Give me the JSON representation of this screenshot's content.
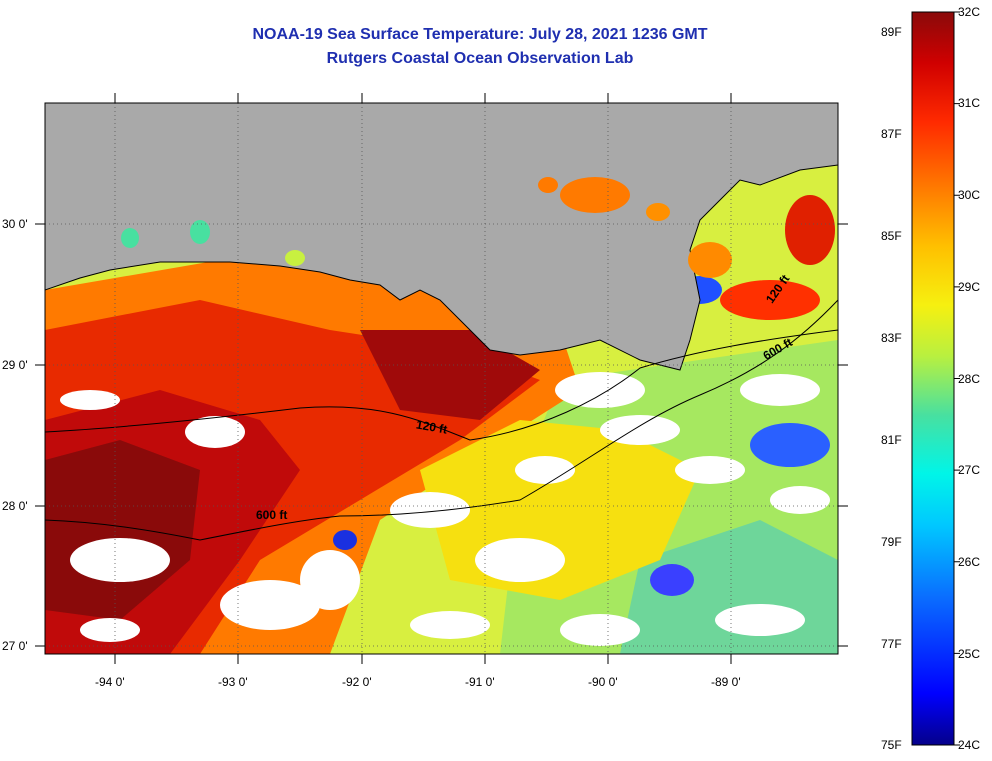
{
  "title": {
    "line1": "NOAA-19 Sea Surface Temperature:  July 28, 2021 1236 GMT",
    "line2": "Rutgers Coastal Ocean Observation Lab"
  },
  "map": {
    "lat_labels": [
      "30 0'",
      "29 0'",
      "28 0'",
      "27 0'"
    ],
    "lon_labels": [
      "-94 0'",
      "-93 0'",
      "-92 0'",
      "-91 0'",
      "-90 0'",
      "-89 0'"
    ],
    "contour_labels": [
      "120 ft",
      "600 ft",
      "120 ft",
      "600 ft"
    ],
    "colors": {
      "land": "#a9a9a9",
      "coastline": "#000000",
      "title": "#1f2fb0"
    }
  },
  "colorbar": {
    "celsius_labels": [
      "32C",
      "31C",
      "30C",
      "29C",
      "28C",
      "27C",
      "26C",
      "25C",
      "24C"
    ],
    "fahrenheit_labels": [
      "89F",
      "87F",
      "85F",
      "83F",
      "81F",
      "79F",
      "77F",
      "75F"
    ],
    "range_c": [
      24,
      32
    ],
    "colors": [
      "#05008a",
      "#0000ff",
      "#0a6cff",
      "#00c8ff",
      "#00f5e8",
      "#48e0a0",
      "#b8f040",
      "#f6f010",
      "#ffc000",
      "#ff7a00",
      "#ff2a00",
      "#d00000",
      "#8a0a0a"
    ]
  }
}
